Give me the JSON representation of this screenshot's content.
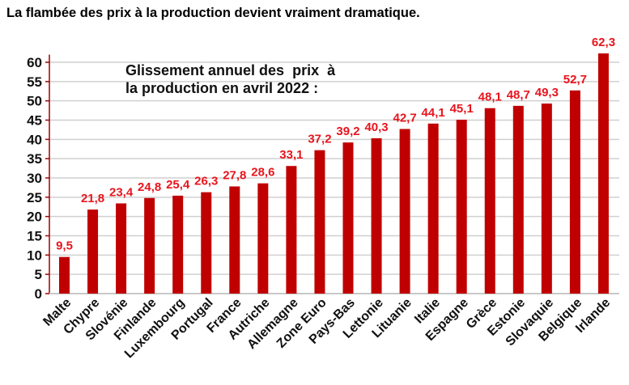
{
  "title": "La flambée des prix à la production devient vraiment dramatique.",
  "chart_data": {
    "type": "bar",
    "title": "Glissement annuel des  prix  à",
    "title_line2": "la production en avril 2022 :",
    "categories": [
      "Malte",
      "Chypre",
      "Slovénie",
      "Finlande",
      "Luxembourg",
      "Portugal",
      "France",
      "Autriche",
      "Allemagne",
      "Zone Euro",
      "Pays-Bas",
      "Lettonie",
      "Lituanie",
      "Italie",
      "Espagne",
      "Grèce",
      "Estonie",
      "Slovaquie",
      "Belgique",
      "Irlande"
    ],
    "values": [
      9.5,
      21.8,
      23.4,
      24.8,
      25.4,
      26.3,
      27.8,
      28.6,
      33.1,
      37.2,
      39.2,
      40.3,
      42.7,
      44.1,
      45.1,
      48.1,
      48.7,
      49.3,
      52.7,
      62.3
    ],
    "data_labels": [
      "9,5",
      "21,8",
      "23,4",
      "24,8",
      "25,4",
      "26,3",
      "27,8",
      "28,6",
      "33,1",
      "37,2",
      "39,2",
      "40,3",
      "42,7",
      "44,1",
      "45,1",
      "48,1",
      "48,7",
      "49,3",
      "52,7",
      "62,3"
    ],
    "yticks": [
      "0",
      "5",
      "10",
      "15",
      "20",
      "25",
      "30",
      "35",
      "40",
      "45",
      "50",
      "55",
      "60"
    ],
    "ylim": [
      0,
      62
    ],
    "grid": true,
    "xlabel": "",
    "ylabel": "",
    "bar_color": "#c00000",
    "label_color": "#e8141c",
    "axis_color": "#a00000"
  }
}
